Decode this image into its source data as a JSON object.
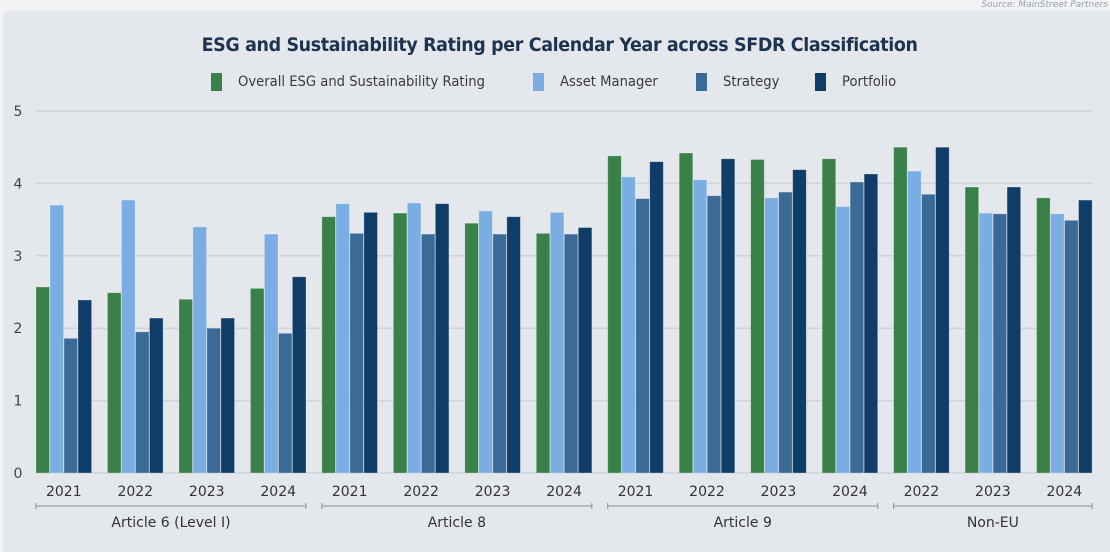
{
  "source": "Source: MainStreet Partners",
  "chart_data": {
    "type": "bar",
    "title": "ESG and Sustainability Rating per Calendar Year across SFDR Classification",
    "xlabel": "",
    "ylabel": "",
    "ylim": [
      0,
      5
    ],
    "yticks": [
      0,
      1,
      2,
      3,
      4,
      5
    ],
    "grid": true,
    "legend_position": "top-center",
    "groups": [
      {
        "name": "Article 6 (Level I)",
        "categories": [
          "2021",
          "2022",
          "2023",
          "2024"
        ]
      },
      {
        "name": "Article 8",
        "categories": [
          "2021",
          "2022",
          "2023",
          "2024"
        ]
      },
      {
        "name": "Article 9",
        "categories": [
          "2021",
          "2022",
          "2023",
          "2024"
        ]
      },
      {
        "name": "Non-EU",
        "categories": [
          "2022",
          "2023",
          "2024"
        ]
      }
    ],
    "categories": [
      "Article 6 (Level I) 2021",
      "Article 6 (Level I) 2022",
      "Article 6 (Level I) 2023",
      "Article 6 (Level I) 2024",
      "Article 8 2021",
      "Article 8 2022",
      "Article 8 2023",
      "Article 8 2024",
      "Article 9 2021",
      "Article 9 2022",
      "Article 9 2023",
      "Article 9 2024",
      "Non-EU 2022",
      "Non-EU 2023",
      "Non-EU 2024"
    ],
    "series": [
      {
        "name": "Overall ESG and Sustainability Rating",
        "color": "#3a8149",
        "values": [
          2.57,
          2.49,
          2.4,
          2.55,
          3.54,
          3.59,
          3.45,
          3.31,
          4.38,
          4.42,
          4.33,
          4.34,
          4.5,
          3.95,
          3.8
        ]
      },
      {
        "name": "Asset Manager",
        "color": "#7aade2",
        "values": [
          3.7,
          3.77,
          3.4,
          3.3,
          3.72,
          3.73,
          3.62,
          3.6,
          4.09,
          4.05,
          3.8,
          3.68,
          4.17,
          3.59,
          3.58
        ]
      },
      {
        "name": "Strategy",
        "color": "#3b6a97",
        "values": [
          1.86,
          1.95,
          2.0,
          1.93,
          3.31,
          3.3,
          3.3,
          3.3,
          3.79,
          3.83,
          3.88,
          4.02,
          3.85,
          3.58,
          3.49
        ]
      },
      {
        "name": "Portfolio",
        "color": "#0f3d68",
        "values": [
          2.39,
          2.14,
          2.14,
          2.71,
          3.6,
          3.72,
          3.54,
          3.39,
          4.3,
          4.34,
          4.19,
          4.13,
          4.5,
          3.95,
          3.77
        ]
      }
    ]
  }
}
